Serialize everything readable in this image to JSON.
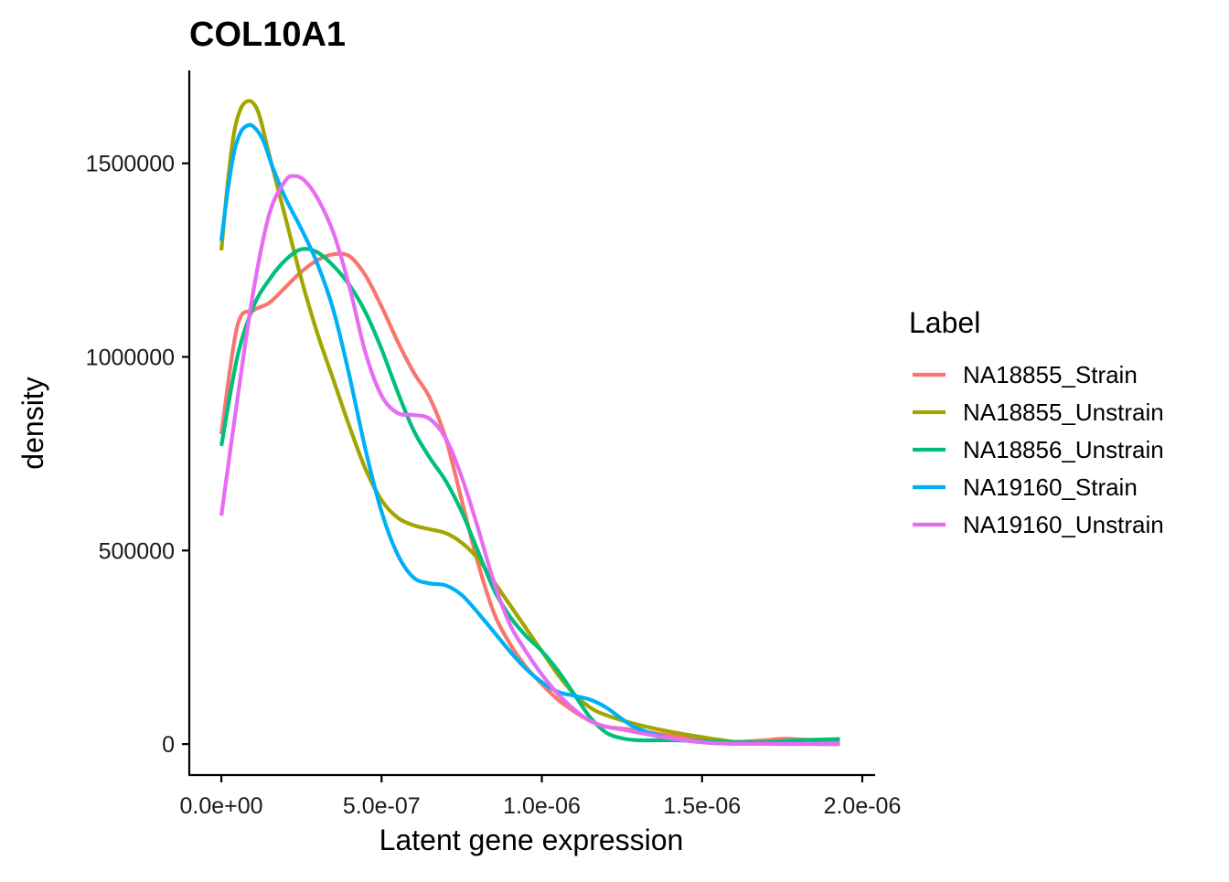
{
  "chart_data": {
    "type": "line",
    "title": "COL10A1",
    "xlabel": "Latent gene expression",
    "ylabel": "density",
    "xlim": [
      -1e-07,
      2.04e-06
    ],
    "ylim": [
      -80000,
      1740000
    ],
    "x_ticks": [
      0,
      5e-07,
      1e-06,
      1.5e-06,
      2e-06
    ],
    "x_tick_labels": [
      "0.0e+00",
      "5.0e-07",
      "1.0e-06",
      "1.5e-06",
      "2.0e-06"
    ],
    "y_ticks": [
      0,
      500000,
      1000000,
      1500000
    ],
    "y_tick_labels": [
      "0",
      "500000",
      "1000000",
      "1500000"
    ],
    "grid": false,
    "legend": {
      "title": "Label",
      "position": "right"
    },
    "series": [
      {
        "name": "NA18855_Strain",
        "color": "#F8766D",
        "points": [
          [
            0,
            800000
          ],
          [
            5e-08,
            1080000
          ],
          [
            1e-07,
            1120000
          ],
          [
            1.5e-07,
            1140000
          ],
          [
            2e-07,
            1180000
          ],
          [
            2.5e-07,
            1220000
          ],
          [
            3e-07,
            1250000
          ],
          [
            3.5e-07,
            1265000
          ],
          [
            4e-07,
            1260000
          ],
          [
            4.5e-07,
            1210000
          ],
          [
            5e-07,
            1130000
          ],
          [
            5.5e-07,
            1040000
          ],
          [
            6e-07,
            960000
          ],
          [
            6.5e-07,
            895000
          ],
          [
            7e-07,
            790000
          ],
          [
            7.5e-07,
            630000
          ],
          [
            8e-07,
            470000
          ],
          [
            8.5e-07,
            340000
          ],
          [
            9e-07,
            260000
          ],
          [
            9.5e-07,
            200000
          ],
          [
            1e-06,
            155000
          ],
          [
            1.05e-06,
            115000
          ],
          [
            1.1e-06,
            85000
          ],
          [
            1.15e-06,
            60000
          ],
          [
            1.2e-06,
            45000
          ],
          [
            1.25e-06,
            40000
          ],
          [
            1.3e-06,
            35000
          ],
          [
            1.4e-06,
            22000
          ],
          [
            1.5e-06,
            12000
          ],
          [
            1.6e-06,
            6000
          ],
          [
            1.7e-06,
            10000
          ],
          [
            1.75e-06,
            14000
          ],
          [
            1.8e-06,
            12000
          ],
          [
            1.9e-06,
            8000
          ],
          [
            1.93e-06,
            7000
          ]
        ]
      },
      {
        "name": "NA18855_Unstrain",
        "color": "#A3A500",
        "points": [
          [
            0,
            1275000
          ],
          [
            2e-08,
            1450000
          ],
          [
            4e-08,
            1580000
          ],
          [
            6e-08,
            1640000
          ],
          [
            8e-08,
            1660000
          ],
          [
            1e-07,
            1655000
          ],
          [
            1.2e-07,
            1620000
          ],
          [
            1.5e-07,
            1520000
          ],
          [
            2e-07,
            1360000
          ],
          [
            2.5e-07,
            1200000
          ],
          [
            3e-07,
            1060000
          ],
          [
            3.5e-07,
            940000
          ],
          [
            4e-07,
            820000
          ],
          [
            4.5e-07,
            710000
          ],
          [
            5e-07,
            630000
          ],
          [
            5.5e-07,
            585000
          ],
          [
            6e-07,
            565000
          ],
          [
            6.5e-07,
            555000
          ],
          [
            7e-07,
            545000
          ],
          [
            7.5e-07,
            520000
          ],
          [
            8e-07,
            480000
          ],
          [
            8.5e-07,
            420000
          ],
          [
            9e-07,
            360000
          ],
          [
            9.5e-07,
            300000
          ],
          [
            1e-06,
            240000
          ],
          [
            1.05e-06,
            180000
          ],
          [
            1.1e-06,
            130000
          ],
          [
            1.15e-06,
            95000
          ],
          [
            1.2e-06,
            75000
          ],
          [
            1.3e-06,
            50000
          ],
          [
            1.4e-06,
            32000
          ],
          [
            1.5e-06,
            18000
          ],
          [
            1.6e-06,
            6000
          ],
          [
            1.7e-06,
            2000
          ],
          [
            1.8e-06,
            1000
          ],
          [
            1.93e-06,
            1000
          ]
        ]
      },
      {
        "name": "NA18856_Unstrain",
        "color": "#00BF7D",
        "points": [
          [
            0,
            770000
          ],
          [
            5e-08,
            1000000
          ],
          [
            1e-07,
            1130000
          ],
          [
            1.5e-07,
            1200000
          ],
          [
            2e-07,
            1250000
          ],
          [
            2.5e-07,
            1278000
          ],
          [
            3e-07,
            1270000
          ],
          [
            3.5e-07,
            1235000
          ],
          [
            4e-07,
            1185000
          ],
          [
            4.5e-07,
            1115000
          ],
          [
            5e-07,
            1020000
          ],
          [
            5.5e-07,
            910000
          ],
          [
            6e-07,
            810000
          ],
          [
            6.5e-07,
            740000
          ],
          [
            7e-07,
            680000
          ],
          [
            7.5e-07,
            600000
          ],
          [
            8e-07,
            500000
          ],
          [
            8.5e-07,
            400000
          ],
          [
            9e-07,
            330000
          ],
          [
            9.5e-07,
            280000
          ],
          [
            1e-06,
            240000
          ],
          [
            1.05e-06,
            190000
          ],
          [
            1.1e-06,
            130000
          ],
          [
            1.15e-06,
            70000
          ],
          [
            1.2e-06,
            30000
          ],
          [
            1.25e-06,
            15000
          ],
          [
            1.3e-06,
            10000
          ],
          [
            1.4e-06,
            10000
          ],
          [
            1.5e-06,
            8000
          ],
          [
            1.6e-06,
            5000
          ],
          [
            1.7e-06,
            5000
          ],
          [
            1.8e-06,
            10000
          ],
          [
            1.93e-06,
            13000
          ]
        ]
      },
      {
        "name": "NA19160_Strain",
        "color": "#00B0F6",
        "points": [
          [
            0,
            1300000
          ],
          [
            2e-08,
            1430000
          ],
          [
            4e-08,
            1530000
          ],
          [
            6e-08,
            1580000
          ],
          [
            8e-08,
            1597000
          ],
          [
            1e-07,
            1595000
          ],
          [
            1.3e-07,
            1560000
          ],
          [
            1.6e-07,
            1490000
          ],
          [
            2e-07,
            1410000
          ],
          [
            2.5e-07,
            1330000
          ],
          [
            3e-07,
            1240000
          ],
          [
            3.5e-07,
            1120000
          ],
          [
            4e-07,
            950000
          ],
          [
            4.5e-07,
            760000
          ],
          [
            5e-07,
            600000
          ],
          [
            5.5e-07,
            490000
          ],
          [
            6e-07,
            430000
          ],
          [
            6.5e-07,
            415000
          ],
          [
            7e-07,
            410000
          ],
          [
            7.5e-07,
            385000
          ],
          [
            8e-07,
            340000
          ],
          [
            8.5e-07,
            290000
          ],
          [
            9e-07,
            240000
          ],
          [
            9.5e-07,
            195000
          ],
          [
            1e-06,
            160000
          ],
          [
            1.05e-06,
            135000
          ],
          [
            1.1e-06,
            125000
          ],
          [
            1.15e-06,
            115000
          ],
          [
            1.2e-06,
            95000
          ],
          [
            1.25e-06,
            65000
          ],
          [
            1.3e-06,
            40000
          ],
          [
            1.4e-06,
            15000
          ],
          [
            1.5e-06,
            5000
          ],
          [
            1.6e-06,
            1000
          ],
          [
            1.93e-06,
            0
          ]
        ]
      },
      {
        "name": "NA19160_Unstrain",
        "color": "#E76BF3",
        "points": [
          [
            0,
            590000
          ],
          [
            5e-08,
            890000
          ],
          [
            1e-07,
            1170000
          ],
          [
            1.5e-07,
            1370000
          ],
          [
            2e-07,
            1455000
          ],
          [
            2.3e-07,
            1467000
          ],
          [
            2.6e-07,
            1455000
          ],
          [
            3e-07,
            1410000
          ],
          [
            3.5e-07,
            1320000
          ],
          [
            4e-07,
            1180000
          ],
          [
            4.5e-07,
            1010000
          ],
          [
            5e-07,
            900000
          ],
          [
            5.5e-07,
            855000
          ],
          [
            6e-07,
            850000
          ],
          [
            6.5e-07,
            840000
          ],
          [
            7e-07,
            790000
          ],
          [
            7.5e-07,
            690000
          ],
          [
            8e-07,
            560000
          ],
          [
            8.5e-07,
            420000
          ],
          [
            9e-07,
            310000
          ],
          [
            9.5e-07,
            240000
          ],
          [
            1e-06,
            180000
          ],
          [
            1.05e-06,
            130000
          ],
          [
            1.1e-06,
            90000
          ],
          [
            1.15e-06,
            60000
          ],
          [
            1.2e-06,
            45000
          ],
          [
            1.25e-06,
            38000
          ],
          [
            1.3e-06,
            30000
          ],
          [
            1.4e-06,
            15000
          ],
          [
            1.5e-06,
            5000
          ],
          [
            1.6e-06,
            1000
          ],
          [
            1.93e-06,
            0
          ]
        ]
      }
    ]
  }
}
